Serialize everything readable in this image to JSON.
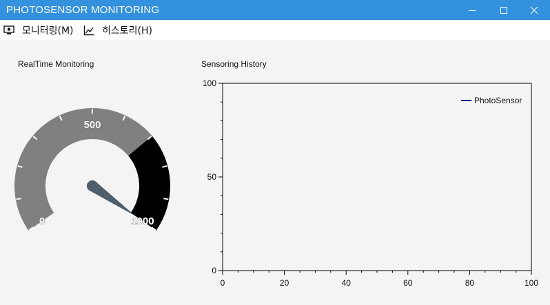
{
  "window": {
    "title": "PHOTOSENSOR MONITORING",
    "controls": [
      "minimize",
      "maximize",
      "close"
    ]
  },
  "menu": {
    "items": [
      {
        "label": "모니터링(M)",
        "icon": "monitor-icon"
      },
      {
        "label": "히스토리(H)",
        "icon": "line-chart-icon"
      }
    ]
  },
  "realtime": {
    "label": "RealTime Monitoring",
    "gauge": {
      "min": 0,
      "max": 1000,
      "value": 1000,
      "labels": [
        "0",
        "500",
        "1000"
      ],
      "warning_from": 700,
      "colors": {
        "normal": "#808080",
        "warning": "#000000",
        "needle": "#4e5f6b"
      }
    }
  },
  "history": {
    "label": "Sensoring History",
    "chart_data": {
      "type": "line",
      "title": "",
      "xlabel": "",
      "ylabel": "",
      "xlim": [
        0,
        100
      ],
      "ylim": [
        0,
        100
      ],
      "x_ticks": [
        0,
        20,
        40,
        60,
        80,
        100
      ],
      "y_ticks": [
        0,
        50,
        100
      ],
      "grid": false,
      "legend_position": "top-right",
      "series": [
        {
          "name": "PhotoSensor",
          "color": "#00008b",
          "x": [],
          "y": []
        }
      ]
    }
  }
}
